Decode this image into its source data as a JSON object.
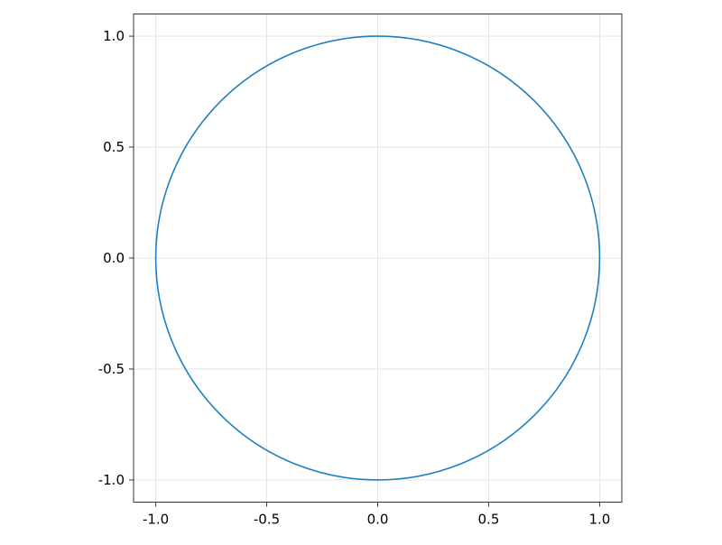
{
  "chart_data": {
    "type": "line",
    "title": "",
    "xlabel": "",
    "ylabel": "",
    "xlim": [
      -1.1,
      1.1
    ],
    "ylim": [
      -1.1,
      1.1
    ],
    "grid": true,
    "aspect": "equal",
    "x_ticks": [
      -1.0,
      -0.5,
      0.0,
      0.5,
      1.0
    ],
    "y_ticks": [
      -1.0,
      -0.5,
      0.0,
      0.5,
      1.0
    ],
    "x_tick_labels": [
      "-1.0",
      "-0.5",
      "0.0",
      "0.5",
      "1.0"
    ],
    "y_tick_labels": [
      "-1.0",
      "-0.5",
      "0.0",
      "0.5",
      "1.0"
    ],
    "series": [
      {
        "shape": "circle",
        "center": [
          0,
          0
        ],
        "radius": 1.0,
        "color": "#1f7fc0"
      }
    ]
  }
}
